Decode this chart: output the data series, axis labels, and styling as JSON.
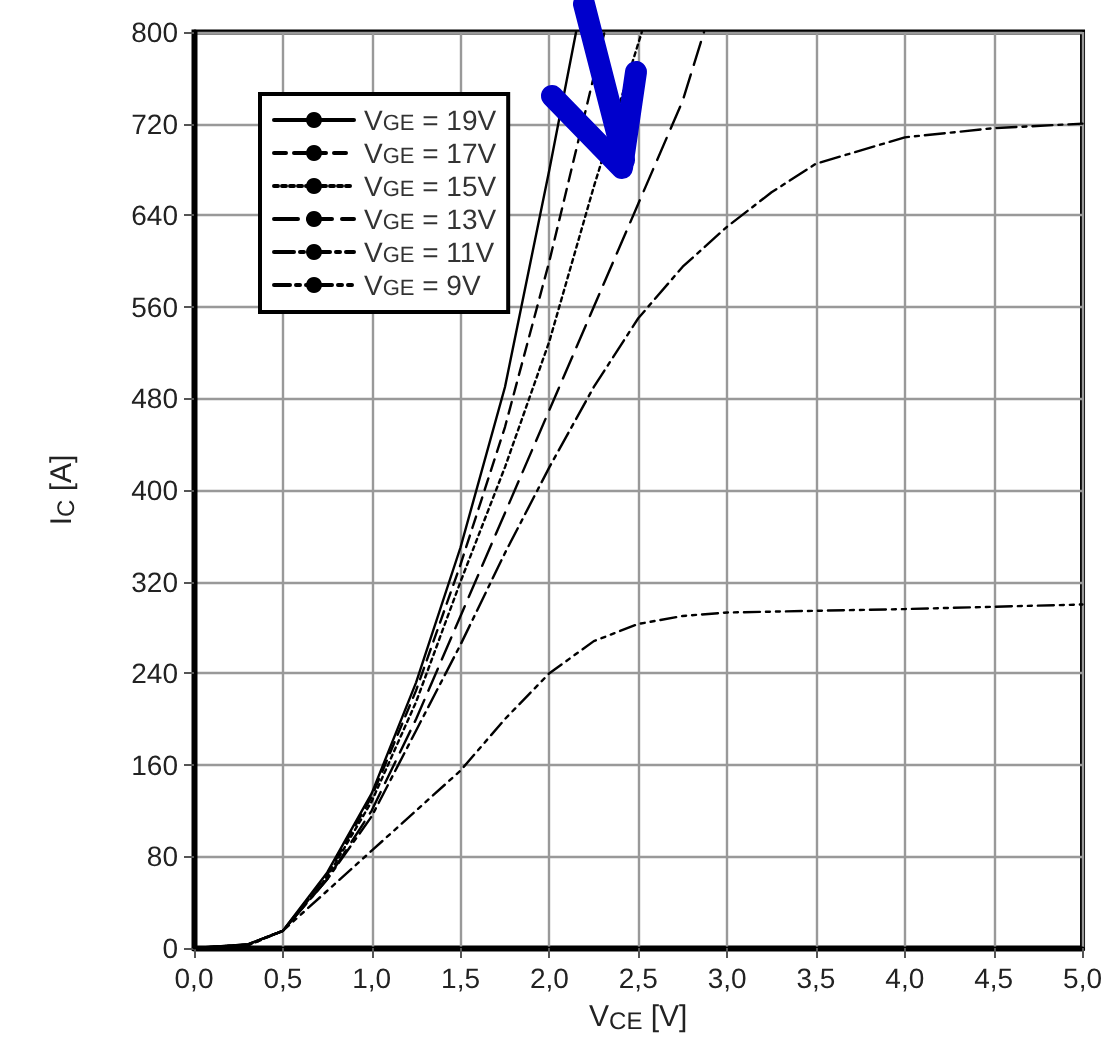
{
  "chart_data": {
    "type": "line",
    "xlabel": "V$_{CE}$ [V]",
    "ylabel": "I$_{C}$ [A]",
    "xlim": [
      0,
      5
    ],
    "xticks": [
      {
        "value": 0,
        "label": "0,0"
      },
      {
        "value": 0.5,
        "label": "0,5"
      },
      {
        "value": 1,
        "label": "1,0"
      },
      {
        "value": 1.5,
        "label": "1,5"
      },
      {
        "value": 2,
        "label": "2,0"
      },
      {
        "value": 2.5,
        "label": "2,5"
      },
      {
        "value": 3,
        "label": "3,0"
      },
      {
        "value": 3.5,
        "label": "3,5"
      },
      {
        "value": 4,
        "label": "4,0"
      },
      {
        "value": 4.5,
        "label": "4,5"
      },
      {
        "value": 5,
        "label": "5,0"
      }
    ],
    "ylim": [
      0,
      800
    ],
    "yticks": [
      0,
      80,
      160,
      240,
      320,
      400,
      480,
      560,
      640,
      720,
      800
    ],
    "grid": true,
    "legend": "top left",
    "marker": "none",
    "series": [
      {
        "name": "V$_{GE}$ = 19V",
        "color": "#000000",
        "line_style": "solid",
        "x": [
          0,
          0.3,
          0.5,
          0.75,
          1.0,
          1.25,
          1.5,
          1.75,
          2.0,
          2.15
        ],
        "values": [
          0,
          3,
          15,
          66,
          135,
          232,
          350,
          490,
          680,
          800
        ]
      },
      {
        "name": "V$_{GE}$ = 17V",
        "color": "#000000",
        "line_style": "dashed",
        "x": [
          0,
          0.3,
          0.5,
          0.75,
          1.0,
          1.25,
          1.5,
          1.75,
          2.0,
          2.31
        ],
        "values": [
          0,
          3,
          15,
          64,
          132,
          225,
          335,
          455,
          600,
          800
        ]
      },
      {
        "name": "V$_{GE}$ = 15V",
        "color": "#000000",
        "line_style": "dotted",
        "x": [
          0,
          0.3,
          0.5,
          0.75,
          1.0,
          1.25,
          1.5,
          1.75,
          2.0,
          2.25,
          2.52
        ],
        "values": [
          0,
          3,
          15,
          62,
          128,
          215,
          320,
          420,
          530,
          665,
          800
        ]
      },
      {
        "name": "V$_{GE}$ = 13V",
        "color": "#000000",
        "line_style": "longdash",
        "x": [
          0,
          0.3,
          0.5,
          0.75,
          1.0,
          1.25,
          1.5,
          1.75,
          2.0,
          2.25,
          2.5,
          2.75,
          2.87
        ],
        "values": [
          0,
          3,
          15,
          60,
          120,
          200,
          290,
          380,
          470,
          560,
          650,
          740,
          800
        ]
      },
      {
        "name": "V$_{GE}$ = 11V",
        "color": "#000000",
        "line_style": "dashdot",
        "x": [
          0,
          0.3,
          0.5,
          0.75,
          1.0,
          1.25,
          1.5,
          1.75,
          2.0,
          2.25,
          2.5,
          2.75,
          3.0,
          3.25,
          3.5,
          4.0,
          4.5,
          5.0
        ],
        "values": [
          0,
          2,
          15,
          60,
          115,
          190,
          265,
          345,
          420,
          490,
          550,
          595,
          630,
          660,
          685,
          708,
          716,
          720
        ]
      },
      {
        "name": "V$_{GE}$ = 9V",
        "color": "#000000",
        "line_style": "dashdotdot",
        "x": [
          0,
          0.3,
          0.5,
          0.75,
          1.0,
          1.25,
          1.5,
          1.75,
          2.0,
          2.25,
          2.5,
          2.75,
          3.0,
          4.0,
          5.0
        ],
        "values": [
          0,
          2,
          15,
          50,
          85,
          120,
          155,
          200,
          240,
          268,
          283,
          290,
          293,
          296,
          300
        ]
      }
    ]
  }
}
